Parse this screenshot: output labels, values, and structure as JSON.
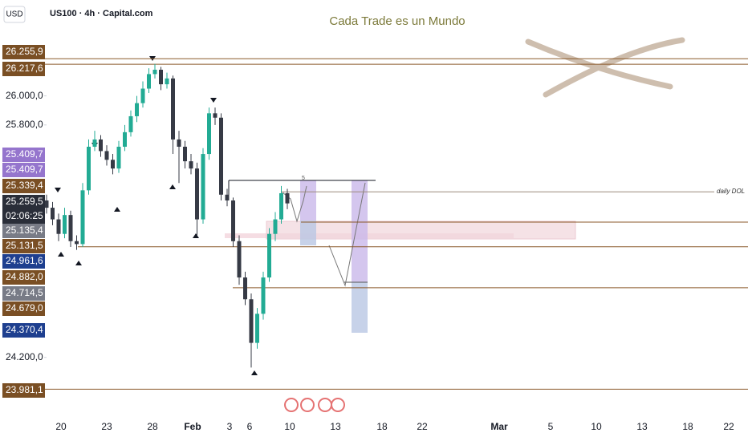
{
  "header": {
    "currency": "USD",
    "symbol": "US100 · 4h · Capital.com"
  },
  "chart_data": {
    "type": "candlestick",
    "title": "Cada Trade es un Mundo",
    "annotation": "daily DOL",
    "marker_text": "5",
    "up_color": "#22ab94",
    "down_color": "#363a45",
    "open": [
      25280,
      25230,
      25150,
      25050,
      25180,
      25000,
      24980,
      25350,
      25650,
      25700,
      25620,
      25560,
      25500,
      25650,
      25750,
      25860,
      25950,
      26050,
      26150,
      26180,
      26080,
      26120,
      25700,
      25650,
      25550,
      25500,
      25150,
      25600,
      25880,
      25850,
      25320,
      25280,
      25000,
      24750,
      24600,
      24300,
      24500,
      24750,
      25050,
      25150,
      25330
    ],
    "high": [
      25320,
      25270,
      25190,
      25230,
      25210,
      25040,
      25400,
      25700,
      25760,
      25730,
      25660,
      25600,
      25690,
      25800,
      25900,
      26000,
      26100,
      26190,
      26220,
      26200,
      26160,
      26140,
      25760,
      25690,
      25600,
      25540,
      25640,
      25920,
      25920,
      25880,
      25360,
      25300,
      25040,
      24790,
      24640,
      24540,
      24790,
      25090,
      25200,
      25380,
      25360
    ],
    "low": [
      25190,
      25110,
      25000,
      25020,
      24960,
      24940,
      24960,
      25320,
      25620,
      25580,
      25520,
      25460,
      25470,
      25620,
      25720,
      25820,
      25920,
      26020,
      26120,
      26040,
      26050,
      25600,
      25400,
      25500,
      25460,
      25040,
      25120,
      25560,
      25800,
      25280,
      25240,
      24960,
      24700,
      24560,
      24130,
      24260,
      24460,
      24720,
      25000,
      25120,
      25220
    ],
    "close": [
      25230,
      25150,
      25050,
      25180,
      25000,
      24980,
      25350,
      25650,
      25700,
      25620,
      25560,
      25500,
      25650,
      25750,
      25860,
      25950,
      26050,
      26150,
      26180,
      26080,
      26120,
      25700,
      25650,
      25550,
      25500,
      25150,
      25600,
      25880,
      25850,
      25320,
      25280,
      25000,
      24750,
      24600,
      24300,
      24500,
      24750,
      25050,
      25150,
      25330,
      25260
    ],
    "ylim": [
      23790,
      26660
    ],
    "yticks": [
      {
        "value": 26000,
        "label": "26.000,0"
      },
      {
        "value": 25800,
        "label": "25.800,0"
      },
      {
        "value": 24200,
        "label": "24.200,0"
      }
    ],
    "price_labels": [
      {
        "value": 26255.9,
        "label": "26.255,9",
        "color": "#7a4f24"
      },
      {
        "value": 26217.6,
        "label": "26.217,6",
        "color": "#7a4f24"
      },
      {
        "value": 25409.7,
        "label": "25.409,7",
        "color": "#9575cd"
      },
      {
        "value": 25409.7,
        "label": "25.409,7",
        "color": "#9575cd"
      },
      {
        "value": 25339.4,
        "label": "25.339,4",
        "color": "#7a4f24"
      },
      {
        "value": 25259.5,
        "label": "25.259,5",
        "color": "#2a2e39",
        "countdown": "02:06:25"
      },
      {
        "value": 25135.4,
        "label": "25.135,4",
        "color": "#787b86"
      },
      {
        "value": 25131.5,
        "label": "25.131,5",
        "color": "#7a4f24"
      },
      {
        "value": 24961.6,
        "label": "24.961,6",
        "color": "#1e3f8f"
      },
      {
        "value": 24882.0,
        "label": "24.882,0",
        "color": "#7a4f24"
      },
      {
        "value": 24714.5,
        "label": "24.714,5",
        "color": "#787b86"
      },
      {
        "value": 24679.0,
        "label": "24.679,0",
        "color": "#7a4f24"
      },
      {
        "value": 24370.4,
        "label": "24.370,4",
        "color": "#1e3f8f"
      },
      {
        "value": 23981.1,
        "label": "23.981,1",
        "color": "#7a4f24"
      }
    ],
    "date_labels": [
      "20",
      "23",
      "28",
      "Feb",
      "3",
      "6",
      "10",
      "13",
      "18",
      "22",
      "Mar",
      "5",
      "10",
      "13",
      "18",
      "22"
    ]
  }
}
